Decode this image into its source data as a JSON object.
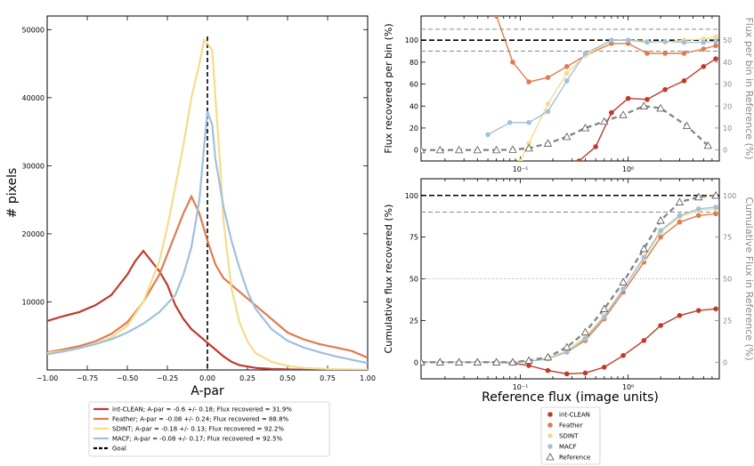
{
  "colors": {
    "int_clean": "#c0392b",
    "feather": "#e07b4f",
    "sdint": "#f5dc8a",
    "macf": "#9fc1de",
    "reference": "#888888",
    "goal": "#000000"
  },
  "chart_data": [
    {
      "type": "line",
      "xlabel": "A-par",
      "ylabel": "# pixels",
      "xlim": [
        -1.0,
        1.0
      ],
      "ylim": [
        0,
        52000
      ],
      "xticks": [
        -1.0,
        -0.75,
        -0.5,
        -0.25,
        0.0,
        0.25,
        0.5,
        0.75,
        1.0
      ],
      "xtick_labels": [
        "−1.00",
        "−0.75",
        "−0.50",
        "−0.25",
        "0.00",
        "0.25",
        "0.50",
        "0.75",
        "1.00"
      ],
      "yticks": [
        10000,
        20000,
        30000,
        40000,
        50000
      ],
      "ytick_labels": [
        "10000",
        "20000",
        "30000",
        "40000",
        "50000"
      ],
      "goal_x": 0.0,
      "legend": {
        "placement": "below",
        "entries": [
          {
            "label": "int-CLEAN; A-par = -0.6 +/- 0.18; Flux recovered = 31.9%",
            "color": "#c0392b"
          },
          {
            "label": "Feather; A-par = -0.08 +/- 0.24; Flux recovered = 88.8%",
            "color": "#e07b4f"
          },
          {
            "label": "SDINT; A-par = -0.18 +/- 0.13; Flux recovered = 92.2%",
            "color": "#f5dc8a"
          },
          {
            "label": "MACF; A-par = -0.08 +/- 0.17; Flux recovered = 92.5%",
            "color": "#9fc1de"
          },
          {
            "label": "Goal",
            "color": "#000000",
            "dashed": true
          }
        ]
      },
      "series": [
        {
          "key": "int_clean",
          "color": "#c0392b",
          "x": [
            -1.0,
            -0.9,
            -0.8,
            -0.7,
            -0.6,
            -0.5,
            -0.45,
            -0.4,
            -0.35,
            -0.3,
            -0.25,
            -0.2,
            -0.15,
            -0.1,
            -0.05,
            0.0,
            0.05,
            0.1,
            0.15,
            0.2,
            0.3,
            0.4,
            0.5,
            0.6,
            0.8,
            1.0
          ],
          "y": [
            7200,
            7900,
            8500,
            9500,
            11000,
            14000,
            16000,
            17500,
            16000,
            14500,
            12500,
            9500,
            7500,
            6000,
            5000,
            4000,
            3000,
            2000,
            1200,
            700,
            300,
            150,
            80,
            40,
            20,
            10
          ]
        },
        {
          "key": "feather",
          "color": "#e07b4f",
          "x": [
            -1.0,
            -0.9,
            -0.8,
            -0.7,
            -0.6,
            -0.5,
            -0.4,
            -0.3,
            -0.25,
            -0.2,
            -0.15,
            -0.1,
            -0.05,
            0.0,
            0.05,
            0.1,
            0.15,
            0.2,
            0.3,
            0.4,
            0.5,
            0.6,
            0.7,
            0.8,
            0.9,
            1.0
          ],
          "y": [
            2600,
            3000,
            3500,
            4200,
            5300,
            7000,
            10000,
            14000,
            17000,
            20000,
            23000,
            25500,
            23000,
            19000,
            15500,
            13500,
            12500,
            11500,
            9500,
            7500,
            5500,
            4500,
            3800,
            3300,
            2800,
            1800
          ]
        },
        {
          "key": "sdint",
          "color": "#f5dc8a",
          "x": [
            -1.0,
            -0.9,
            -0.8,
            -0.7,
            -0.6,
            -0.5,
            -0.4,
            -0.3,
            -0.25,
            -0.2,
            -0.15,
            -0.1,
            -0.05,
            -0.02,
            0.0,
            0.03,
            0.05,
            0.08,
            0.1,
            0.15,
            0.2,
            0.25,
            0.3,
            0.4,
            0.5,
            0.6,
            0.8,
            1.0
          ],
          "y": [
            2500,
            2800,
            3200,
            3800,
            4800,
            6500,
            10000,
            16000,
            21000,
            27000,
            33000,
            40000,
            45000,
            48500,
            48000,
            47000,
            40000,
            30000,
            22000,
            12000,
            7000,
            4200,
            2500,
            1200,
            600,
            300,
            100,
            50
          ]
        },
        {
          "key": "macf",
          "color": "#9fc1de",
          "x": [
            -1.0,
            -0.9,
            -0.8,
            -0.7,
            -0.6,
            -0.5,
            -0.4,
            -0.3,
            -0.2,
            -0.15,
            -0.1,
            -0.05,
            -0.02,
            0.0,
            0.03,
            0.05,
            0.1,
            0.15,
            0.2,
            0.25,
            0.3,
            0.4,
            0.5,
            0.6,
            0.7,
            0.8,
            0.9,
            1.0
          ],
          "y": [
            2300,
            2700,
            3200,
            3800,
            4500,
            5500,
            6800,
            8500,
            11000,
            14000,
            18000,
            25000,
            33000,
            38000,
            36000,
            31000,
            24000,
            19000,
            15000,
            11500,
            9000,
            6000,
            4300,
            3300,
            2600,
            2000,
            1500,
            1000
          ]
        }
      ]
    },
    {
      "type": "line",
      "xlabel": "",
      "ylabel": "Flux recovered per bin (%)",
      "ylabel_right": "Flux per bin in Reference (%)",
      "xscale": "log",
      "xlim": [
        0.012,
        7.0
      ],
      "ylim": [
        -10,
        122
      ],
      "ylim_right": [
        -5,
        61
      ],
      "xticks": [
        0.1,
        1.0
      ],
      "xtick_labels": [
        "10⁻¹",
        "10⁰"
      ],
      "yticks": [
        0,
        20,
        40,
        60,
        80,
        100
      ],
      "ytick_labels": [
        "0",
        "20",
        "40",
        "60",
        "80",
        "100"
      ],
      "yticks_right": [
        0,
        10,
        20,
        30,
        40,
        50
      ],
      "ytick_labels_right": [
        "0",
        "10",
        "20",
        "30",
        "40",
        "50"
      ],
      "goal_y": 100,
      "thresholds_y": [
        90,
        110
      ],
      "series": [
        {
          "key": "int_clean",
          "color": "#c0392b",
          "x": [
            0.35,
            0.5,
            0.7,
            1.0,
            1.5,
            2.2,
            3.3,
            5.0,
            6.5
          ],
          "y": [
            -10,
            3,
            34,
            47,
            46,
            55,
            63,
            76,
            83
          ]
        },
        {
          "key": "feather",
          "color": "#e07b4f",
          "x": [
            0.06,
            0.085,
            0.12,
            0.18,
            0.27,
            0.4,
            0.7,
            1.0,
            1.5,
            2.2,
            3.3,
            5.0,
            6.5
          ],
          "y": [
            122,
            80,
            62,
            66,
            76,
            86,
            97,
            97,
            88,
            88,
            88,
            92,
            95
          ]
        },
        {
          "key": "sdint",
          "color": "#f5dc8a",
          "x": [
            0.1,
            0.12,
            0.18,
            0.27,
            0.4,
            0.7,
            1.0,
            1.5,
            2.2,
            3.3,
            5.0,
            6.5
          ],
          "y": [
            -10,
            6,
            42,
            70,
            86,
            100,
            100,
            99,
            98,
            100,
            101,
            103
          ]
        },
        {
          "key": "macf",
          "color": "#9fc1de",
          "x": [
            0.05,
            0.08,
            0.12,
            0.18,
            0.27,
            0.4,
            0.7,
            1.0,
            1.5,
            2.2,
            3.3,
            5.0,
            6.5
          ],
          "y": [
            14,
            25,
            25,
            35,
            63,
            88,
            100,
            100,
            98,
            99,
            98,
            98,
            99
          ]
        },
        {
          "key": "reference",
          "color": "#888888",
          "axis": "right",
          "dashed": true,
          "marker": "triangle",
          "x": [
            0.012,
            0.018,
            0.027,
            0.04,
            0.06,
            0.085,
            0.12,
            0.18,
            0.27,
            0.4,
            0.6,
            0.9,
            1.4,
            2.0,
            3.5,
            5.5
          ],
          "y": [
            0,
            0,
            0,
            0,
            0,
            0.2,
            0.8,
            3,
            6,
            10,
            13,
            16,
            20,
            19,
            11,
            2
          ]
        }
      ]
    },
    {
      "type": "line",
      "xlabel": "Reference flux (image units)",
      "ylabel": "Cumulative flux recovered (%)",
      "ylabel_right": "Cumulative Flux in Reference (%)",
      "xscale": "log",
      "xlim": [
        0.012,
        7.0
      ],
      "ylim": [
        -10,
        110
      ],
      "xticks": [
        0.1,
        1.0
      ],
      "xtick_labels": [
        "10⁻¹",
        "10⁰"
      ],
      "yticks": [
        0,
        25,
        50,
        75,
        100
      ],
      "ytick_labels": [
        "0",
        "25",
        "50",
        "75",
        "100"
      ],
      "ytick_labels_right": [
        "0",
        "25",
        "50",
        "75",
        "100"
      ],
      "goal_y": 100,
      "thresholds_y": [
        90
      ],
      "dotted_y": [
        50
      ],
      "legend": {
        "placement": "below",
        "entries": [
          {
            "label": "int-CLEAN",
            "color": "#c0392b",
            "marker": "circle"
          },
          {
            "label": "Feather",
            "color": "#e07b4f",
            "marker": "circle"
          },
          {
            "label": "SDINT",
            "color": "#f5dc8a",
            "marker": "circle"
          },
          {
            "label": "MACF",
            "color": "#9fc1de",
            "marker": "circle"
          },
          {
            "label": "Reference",
            "color": "#888888",
            "marker": "triangle"
          }
        ]
      },
      "series": [
        {
          "key": "int_clean",
          "color": "#c0392b",
          "x": [
            0.012,
            0.018,
            0.027,
            0.04,
            0.06,
            0.085,
            0.12,
            0.18,
            0.27,
            0.4,
            0.6,
            0.9,
            1.4,
            2.0,
            3.0,
            4.5,
            6.5
          ],
          "y": [
            0,
            0,
            0,
            0,
            0,
            -0.5,
            -2,
            -5,
            -7,
            -6.5,
            -3,
            4,
            13,
            22,
            28,
            31,
            32
          ]
        },
        {
          "key": "feather",
          "color": "#e07b4f",
          "x": [
            0.012,
            0.018,
            0.027,
            0.04,
            0.06,
            0.085,
            0.12,
            0.18,
            0.27,
            0.4,
            0.6,
            0.9,
            1.4,
            2.0,
            3.0,
            4.5,
            6.5
          ],
          "y": [
            0,
            0,
            0,
            0,
            0,
            0,
            0.5,
            2,
            6,
            13,
            26,
            42,
            60,
            75,
            84,
            88,
            89
          ]
        },
        {
          "key": "sdint",
          "color": "#f5dc8a",
          "x": [
            0.012,
            0.018,
            0.027,
            0.04,
            0.06,
            0.085,
            0.12,
            0.18,
            0.27,
            0.4,
            0.6,
            0.9,
            1.4,
            2.0,
            3.0,
            4.5,
            6.5
          ],
          "y": [
            0,
            0,
            0,
            0,
            0,
            0,
            0.5,
            2.5,
            7,
            15,
            28,
            44,
            62,
            78,
            87,
            91,
            92
          ]
        },
        {
          "key": "macf",
          "color": "#9fc1de",
          "x": [
            0.012,
            0.018,
            0.027,
            0.04,
            0.06,
            0.085,
            0.12,
            0.18,
            0.27,
            0.4,
            0.6,
            0.9,
            1.4,
            2.0,
            3.0,
            4.5,
            6.5
          ],
          "y": [
            0,
            0,
            0,
            0,
            0,
            0,
            0.5,
            2,
            6,
            14,
            27,
            44,
            63,
            79,
            88,
            92,
            93
          ]
        },
        {
          "key": "reference",
          "color": "#888888",
          "dashed": true,
          "marker": "triangle",
          "x": [
            0.012,
            0.018,
            0.027,
            0.04,
            0.06,
            0.085,
            0.12,
            0.18,
            0.27,
            0.4,
            0.6,
            0.9,
            1.4,
            2.0,
            3.0,
            4.5,
            6.5
          ],
          "y": [
            0,
            0,
            0,
            0,
            0,
            0,
            1,
            3,
            9,
            18,
            32,
            48,
            68,
            85,
            96,
            99,
            100
          ]
        }
      ]
    }
  ]
}
